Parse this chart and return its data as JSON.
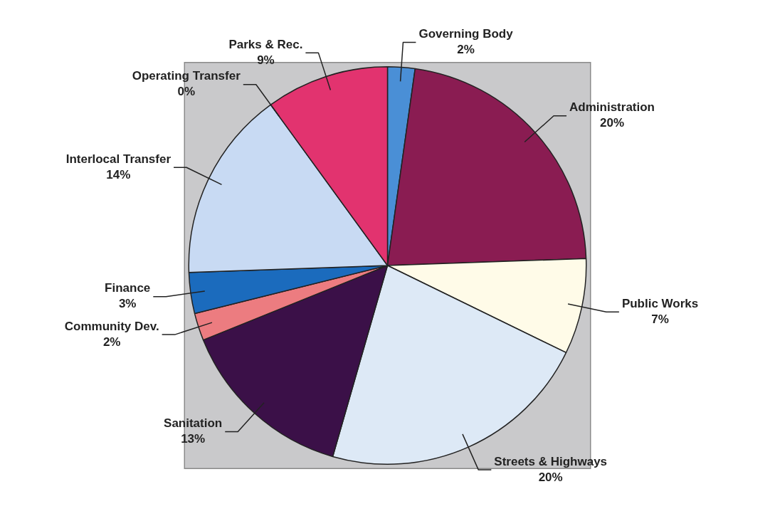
{
  "chart_data": {
    "type": "pie",
    "categories": [
      "Governing Body",
      "Administration",
      "Public Works",
      "Streets & Highways",
      "Sanitation",
      "Community Dev.",
      "Finance",
      "Interlocal Transfer",
      "Operating Transfer",
      "Parks & Rec."
    ],
    "values": [
      2,
      20,
      7,
      20,
      13,
      2,
      3,
      14,
      0,
      9
    ],
    "value_labels": [
      "2%",
      "20%",
      "7%",
      "20%",
      "13%",
      "2%",
      "3%",
      "14%",
      "0%",
      "9%"
    ],
    "colors": [
      "#4a8fd6",
      "#8a1c52",
      "#fffbe8",
      "#dde9f6",
      "#3b1048",
      "#ec7c80",
      "#1b6bbd",
      "#c8daf3",
      "#9aa6c8",
      "#e2336f"
    ]
  }
}
